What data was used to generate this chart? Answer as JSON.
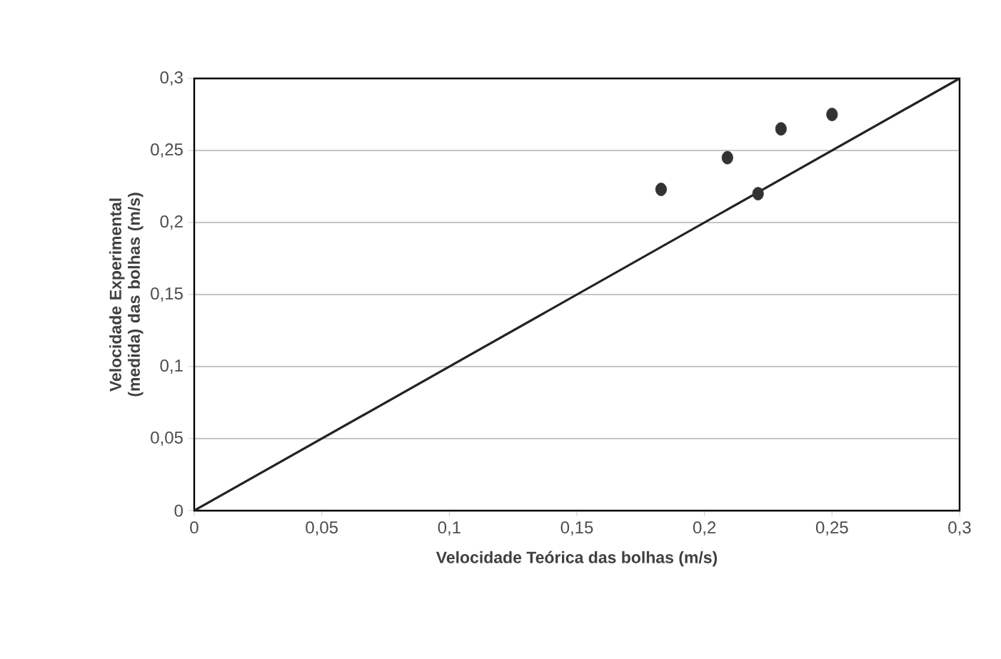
{
  "chart_data": {
    "type": "scatter",
    "xlabel": "Velocidade Teórica das bolhas (m/s)",
    "ylabel": "Velocidade Experimental (medida) das bolhas (m/s)",
    "xlim": [
      0,
      0.3
    ],
    "ylim": [
      0,
      0.3
    ],
    "xticks": [
      0,
      {
        "value": 0.05,
        "label": "0,05"
      },
      {
        "value": 0.1,
        "label": "0,1"
      },
      {
        "value": 0.15,
        "label": "0,15"
      },
      {
        "value": 0.2,
        "label": "0,2"
      },
      {
        "value": 0.25,
        "label": "0,25"
      },
      {
        "value": 0.3,
        "label": "0,3"
      }
    ],
    "yticks": [
      0,
      {
        "value": 0.05,
        "label": "0,05"
      },
      {
        "value": 0.1,
        "label": "0,1"
      },
      {
        "value": 0.15,
        "label": "0,15"
      },
      {
        "value": 0.2,
        "label": "0,2"
      },
      {
        "value": 0.25,
        "label": "0,25"
      },
      {
        "value": 0.3,
        "label": "0,3"
      }
    ],
    "grid": "y",
    "series": [
      {
        "color": "#333333",
        "marker": "circle",
        "x": [
          0.183,
          0.209,
          0.221,
          0.23,
          0.25
        ],
        "values": [
          0.223,
          0.245,
          0.22,
          0.265,
          0.275
        ]
      },
      {
        "type": "line",
        "color": "#222222",
        "marker": "none",
        "line_style": "solid",
        "x": [
          0,
          0.3
        ],
        "values": [
          0,
          0.3
        ]
      }
    ]
  }
}
